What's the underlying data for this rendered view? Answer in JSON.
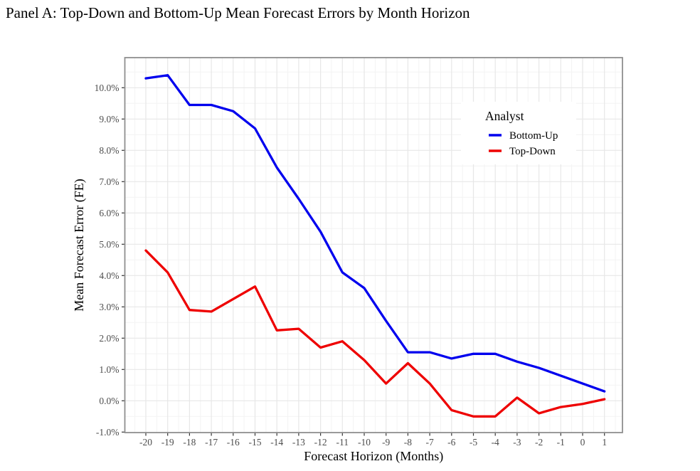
{
  "title": "Panel A: Top-Down and Bottom-Up Mean Forecast Errors by Month Horizon",
  "chart_data": {
    "type": "line",
    "xlabel": "Forecast Horizon (Months)",
    "ylabel": "Mean Forecast Error (FE)",
    "legend_title": "Analyst",
    "legend_position": "inside-top-right",
    "grid": "major+minor",
    "x": [
      -20,
      -19,
      -18,
      -17,
      -16,
      -15,
      -14,
      -13,
      -12,
      -11,
      -10,
      -9,
      -8,
      -7,
      -6,
      -5,
      -4,
      -3,
      -2,
      -1,
      0,
      1
    ],
    "series": [
      {
        "name": "Bottom-Up",
        "color": "#0000EE",
        "values": [
          10.3,
          10.4,
          9.45,
          9.45,
          9.25,
          8.7,
          7.45,
          6.45,
          5.4,
          4.1,
          3.6,
          2.55,
          1.55,
          1.55,
          1.35,
          1.5,
          1.5,
          1.25,
          1.05,
          0.8,
          0.55,
          0.3
        ]
      },
      {
        "name": "Top-Down",
        "color": "#EE0000",
        "values": [
          4.8,
          4.1,
          2.9,
          2.85,
          3.25,
          3.65,
          2.25,
          2.3,
          1.7,
          1.9,
          1.3,
          0.55,
          1.2,
          0.55,
          -0.3,
          -0.5,
          -0.5,
          0.1,
          -0.4,
          -0.2,
          -0.1,
          0.05
        ]
      }
    ],
    "y_ticks": [
      -1,
      0,
      1,
      2,
      3,
      4,
      5,
      6,
      7,
      8,
      9,
      10
    ],
    "y_tick_format": "percent-1dp",
    "ylim": [
      -1.0,
      10.95
    ],
    "colors": {
      "grid_major": "#e7e7e7",
      "grid_minor": "#f3f3f3",
      "panel_border": "#8f8f8f",
      "tick_mark": "#333333",
      "tick_label": "#4d4d4d",
      "axis_title": "#000000",
      "legend_text": "#000000"
    }
  }
}
